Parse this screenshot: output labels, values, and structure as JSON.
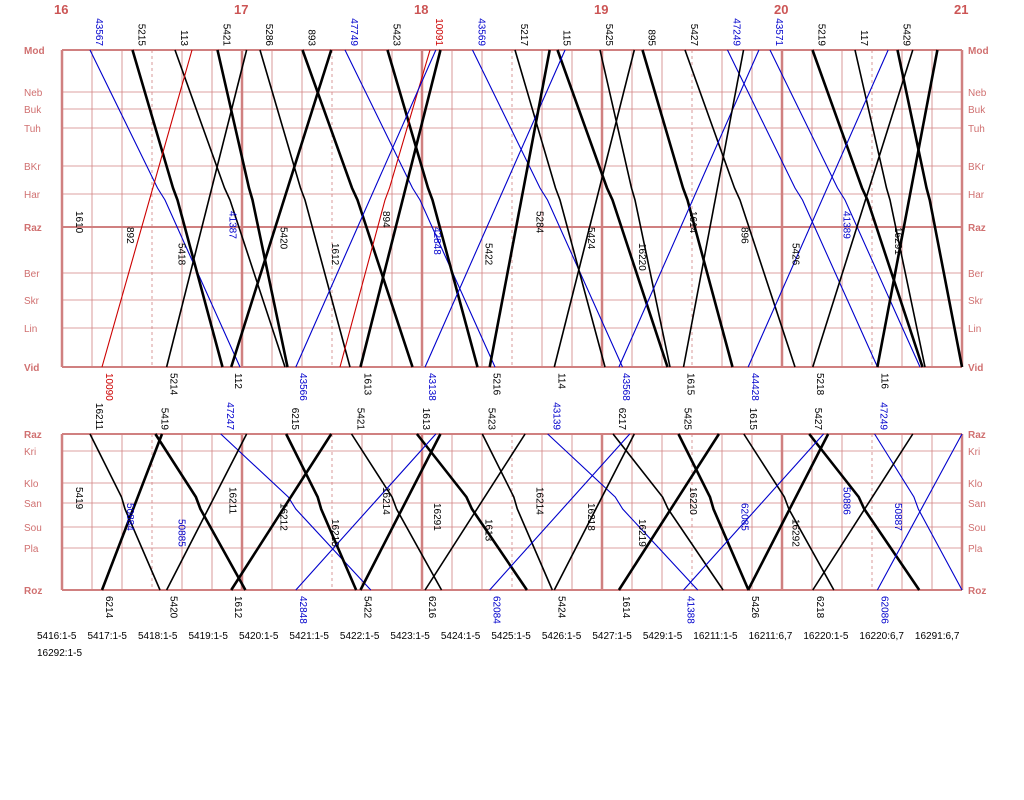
{
  "hours": [
    "16",
    "17",
    "18",
    "19",
    "20",
    "21"
  ],
  "upper": {
    "stations": [
      "Mod",
      "Neb",
      "Buk",
      "Tuh",
      "BKr",
      "Har",
      "Raz",
      "Ber",
      "Skr",
      "Lin",
      "Vid"
    ],
    "top_labels": [
      {
        "t": "43567",
        "c": "#0000cc"
      },
      {
        "t": "5215",
        "c": "#000000"
      },
      {
        "t": "113",
        "c": "#000000"
      },
      {
        "t": "5421",
        "c": "#000000"
      },
      {
        "t": "5286",
        "c": "#000000"
      },
      {
        "t": "893",
        "c": "#000000"
      },
      {
        "t": "47749",
        "c": "#0000cc"
      },
      {
        "t": "5423",
        "c": "#000000"
      },
      {
        "t": "10091",
        "c": "#cc0000"
      },
      {
        "t": "43569",
        "c": "#0000cc"
      },
      {
        "t": "5217",
        "c": "#000000"
      },
      {
        "t": "115",
        "c": "#000000"
      },
      {
        "t": "5425",
        "c": "#000000"
      },
      {
        "t": "895",
        "c": "#000000"
      },
      {
        "t": "5427",
        "c": "#000000"
      },
      {
        "t": "47249",
        "c": "#0000cc"
      },
      {
        "t": "43571",
        "c": "#0000cc"
      },
      {
        "t": "5219",
        "c": "#000000"
      },
      {
        "t": "117",
        "c": "#000000"
      },
      {
        "t": "5429",
        "c": "#000000"
      }
    ],
    "bottom_labels": [
      {
        "t": "10090",
        "c": "#cc0000"
      },
      {
        "t": "5214",
        "c": "#000000"
      },
      {
        "t": "112",
        "c": "#000000"
      },
      {
        "t": "43566",
        "c": "#0000cc"
      },
      {
        "t": "1613",
        "c": "#000000"
      },
      {
        "t": "43138",
        "c": "#0000cc"
      },
      {
        "t": "5216",
        "c": "#000000"
      },
      {
        "t": "114",
        "c": "#000000"
      },
      {
        "t": "43568",
        "c": "#0000cc"
      },
      {
        "t": "1615",
        "c": "#000000"
      },
      {
        "t": "44428",
        "c": "#0000cc"
      },
      {
        "t": "5218",
        "c": "#000000"
      },
      {
        "t": "116",
        "c": "#000000"
      }
    ],
    "inner_labels": [
      {
        "t": "1610",
        "c": "#000000"
      },
      {
        "t": "892",
        "c": "#000000"
      },
      {
        "t": "5418",
        "c": "#000000"
      },
      {
        "t": "41387",
        "c": "#0000cc"
      },
      {
        "t": "5420",
        "c": "#000000"
      },
      {
        "t": "1612",
        "c": "#000000"
      },
      {
        "t": "894",
        "c": "#000000"
      },
      {
        "t": "42848",
        "c": "#0000cc"
      },
      {
        "t": "5422",
        "c": "#000000"
      },
      {
        "t": "5284",
        "c": "#000000"
      },
      {
        "t": "5424",
        "c": "#000000"
      },
      {
        "t": "16220",
        "c": "#000000"
      },
      {
        "t": "1614",
        "c": "#000000"
      },
      {
        "t": "896",
        "c": "#000000"
      },
      {
        "t": "5426",
        "c": "#000000"
      },
      {
        "t": "41389",
        "c": "#0000cc"
      },
      {
        "t": "16291",
        "c": "#000000"
      }
    ]
  },
  "lower": {
    "stations": [
      "Raz",
      "Kri",
      "Klo",
      "San",
      "Sou",
      "Pla",
      "Roz"
    ],
    "top_labels": [
      {
        "t": "16211",
        "c": "#000000"
      },
      {
        "t": "5419",
        "c": "#000000"
      },
      {
        "t": "47247",
        "c": "#0000cc"
      },
      {
        "t": "6215",
        "c": "#000000"
      },
      {
        "t": "5421",
        "c": "#000000"
      },
      {
        "t": "1613",
        "c": "#000000"
      },
      {
        "t": "5423",
        "c": "#000000"
      },
      {
        "t": "43139",
        "c": "#0000cc"
      },
      {
        "t": "6217",
        "c": "#000000"
      },
      {
        "t": "5425",
        "c": "#000000"
      },
      {
        "t": "1615",
        "c": "#000000"
      },
      {
        "t": "5427",
        "c": "#000000"
      },
      {
        "t": "47249",
        "c": "#0000cc"
      }
    ],
    "bottom_labels": [
      {
        "t": "6214",
        "c": "#000000"
      },
      {
        "t": "5420",
        "c": "#000000"
      },
      {
        "t": "1612",
        "c": "#000000"
      },
      {
        "t": "42848",
        "c": "#0000cc"
      },
      {
        "t": "5422",
        "c": "#000000"
      },
      {
        "t": "6216",
        "c": "#000000"
      },
      {
        "t": "62084",
        "c": "#0000cc"
      },
      {
        "t": "5424",
        "c": "#000000"
      },
      {
        "t": "1614",
        "c": "#000000"
      },
      {
        "t": "41388",
        "c": "#0000cc"
      },
      {
        "t": "5426",
        "c": "#000000"
      },
      {
        "t": "6218",
        "c": "#000000"
      },
      {
        "t": "62086",
        "c": "#0000cc"
      }
    ],
    "inner_labels": [
      {
        "t": "5419",
        "c": "#000000"
      },
      {
        "t": "50884",
        "c": "#0000cc"
      },
      {
        "t": "50885",
        "c": "#0000cc"
      },
      {
        "t": "16211",
        "c": "#000000"
      },
      {
        "t": "16212",
        "c": "#000000"
      },
      {
        "t": "16213",
        "c": "#000000"
      },
      {
        "t": "16214",
        "c": "#000000"
      },
      {
        "t": "16291",
        "c": "#000000"
      },
      {
        "t": "1613",
        "c": "#000000"
      },
      {
        "t": "16214",
        "c": "#000000"
      },
      {
        "t": "16218",
        "c": "#000000"
      },
      {
        "t": "16219",
        "c": "#000000"
      },
      {
        "t": "16220",
        "c": "#000000"
      },
      {
        "t": "62085",
        "c": "#0000cc"
      },
      {
        "t": "16292",
        "c": "#000000"
      },
      {
        "t": "50886",
        "c": "#0000cc"
      },
      {
        "t": "50887",
        "c": "#0000cc"
      }
    ]
  },
  "legend": [
    "5416:1-5",
    "5417:1-5",
    "5418:1-5",
    "5419:1-5",
    "5420:1-5",
    "5421:1-5",
    "5422:1-5",
    "5423:1-5",
    "5424:1-5",
    "5425:1-5",
    "5426:1-5",
    "5427:1-5",
    "5429:1-5",
    "16211:1-5",
    "16211:6,7",
    "16220:1-5",
    "16220:6,7",
    "16291:6,7",
    "16292:1-5"
  ],
  "colors": {
    "grid": "#d08080",
    "station_label": "#d07070",
    "hour_label": "#cc5555",
    "train_regular": "#000000",
    "train_freight": "#0000cc",
    "train_special": "#cc0000"
  }
}
